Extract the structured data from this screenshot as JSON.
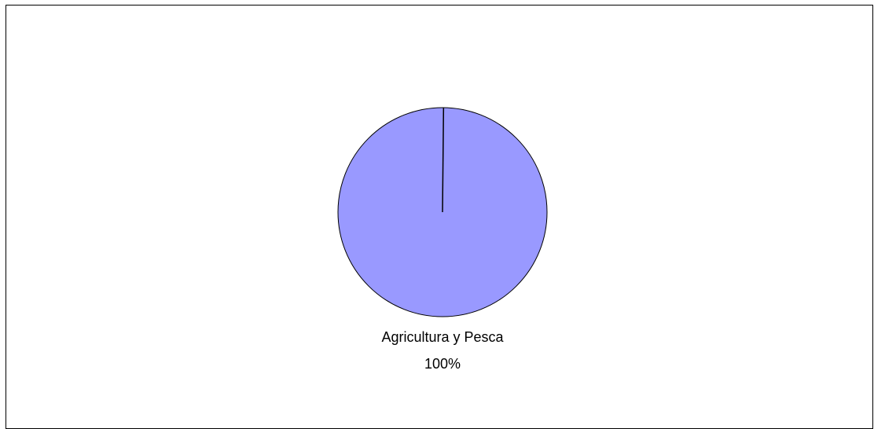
{
  "chart_data": {
    "type": "pie",
    "title": "",
    "categories": [
      "Agricultura y Pesca"
    ],
    "values": [
      100
    ],
    "data_labels": [
      {
        "category": "Agricultura y Pesca",
        "percent": "100%"
      }
    ],
    "colors": [
      "#9999ff"
    ],
    "outline_color": "#000000",
    "legend": "none"
  }
}
